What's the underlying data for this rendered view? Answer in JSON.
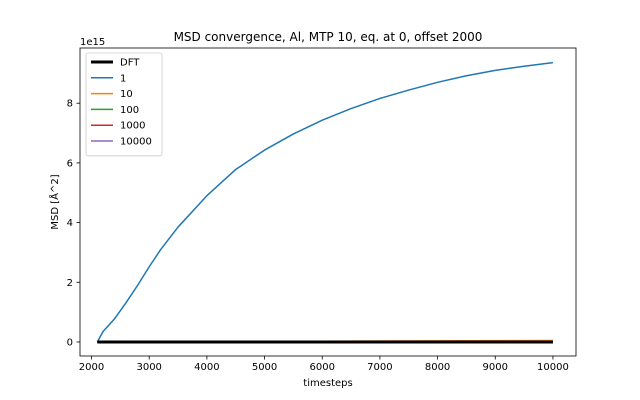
{
  "chart_data": {
    "type": "line",
    "title": "MSD convergence, Al, MTP 10, eq. at 0, offset 2000",
    "xlabel": "timesteps",
    "ylabel": "MSD [Å^2]",
    "y_offset_text": "1e15",
    "y_scale": 1000000000000000.0,
    "xlim": [
      1800,
      10400
    ],
    "ylim": [
      -0.47,
      9.85
    ],
    "x_ticks": [
      2000,
      3000,
      4000,
      5000,
      6000,
      7000,
      8000,
      9000,
      10000
    ],
    "x_tick_labels": [
      "2000",
      "3000",
      "4000",
      "5000",
      "6000",
      "7000",
      "8000",
      "9000",
      "10000"
    ],
    "y_ticks": [
      0,
      2,
      4,
      6,
      8
    ],
    "y_tick_labels": [
      "0",
      "2",
      "4",
      "6",
      "8"
    ],
    "grid": false,
    "legend_position": "top-left",
    "series": [
      {
        "name": "DFT",
        "color": "#000000",
        "width": 3,
        "x": [
          2100,
          10000
        ],
        "values": [
          0,
          0
        ]
      },
      {
        "name": "1",
        "color": "#1f77b4",
        "width": 1.5,
        "x": [
          2100,
          2200,
          2400,
          2600,
          2800,
          3000,
          3200,
          3500,
          4000,
          4500,
          5000,
          5500,
          6000,
          6500,
          7000,
          7500,
          8000,
          8500,
          9000,
          9500,
          10000
        ],
        "values": [
          0.0,
          0.35,
          0.78,
          1.32,
          1.9,
          2.52,
          3.1,
          3.85,
          4.9,
          5.78,
          6.43,
          6.97,
          7.43,
          7.82,
          8.16,
          8.44,
          8.7,
          8.92,
          9.1,
          9.24,
          9.36
        ]
      },
      {
        "name": "10",
        "color": "#ff7f0e",
        "width": 1.5,
        "x": [
          2100,
          10000
        ],
        "values": [
          0.0,
          0.05
        ]
      },
      {
        "name": "100",
        "color": "#2ca02c",
        "width": 1.5,
        "x": [
          2100,
          10000
        ],
        "values": [
          0.0,
          0.01
        ]
      },
      {
        "name": "1000",
        "color": "#d62728",
        "width": 1.5,
        "x": [
          2100,
          10000
        ],
        "values": [
          0.0,
          0.005
        ]
      },
      {
        "name": "10000",
        "color": "#9467bd",
        "width": 1.5,
        "x": [
          2100,
          10000
        ],
        "values": [
          0.0,
          0.02
        ]
      }
    ]
  }
}
